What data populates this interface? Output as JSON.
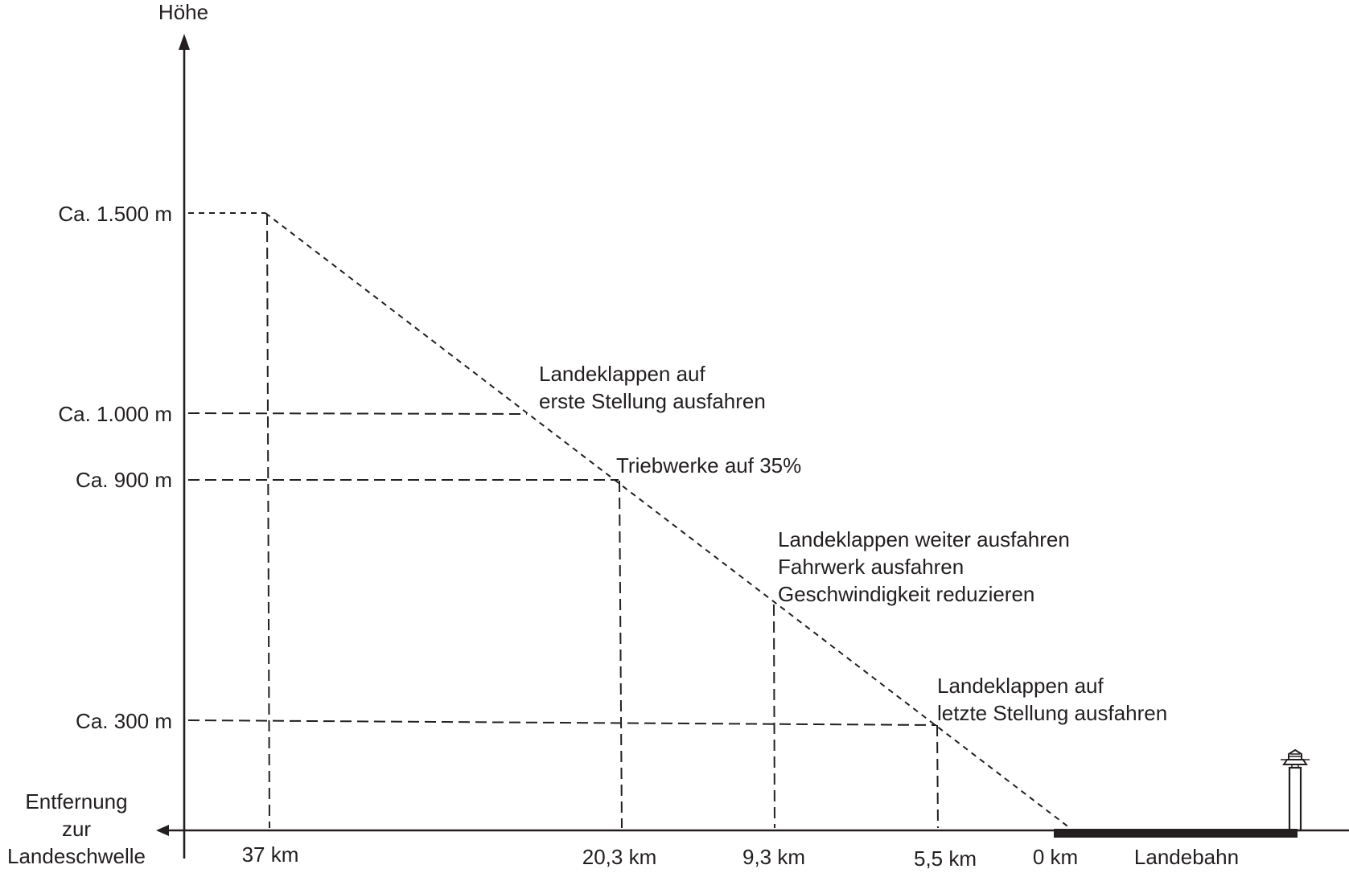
{
  "diagram": {
    "y_axis_title": "Höhe",
    "x_axis_title": [
      "Entfernung",
      "zur",
      "Landeschwelle"
    ],
    "height_labels": [
      "Ca. 1.500 m",
      "Ca. 1.000 m",
      "Ca. 900 m",
      "Ca. 300 m"
    ],
    "distance_labels": [
      "37 km",
      "20,3 km",
      "9,3 km",
      "5,5 km",
      "0 km"
    ],
    "runway_label": "Landebahn",
    "annotations": [
      {
        "lines": [
          "Landeklappen auf",
          "erste Stellung ausfahren"
        ]
      },
      {
        "lines": [
          "Triebwerke auf 35%"
        ]
      },
      {
        "lines": [
          "Landeklappen weiter ausfahren",
          "Fahrwerk ausfahren",
          "Geschwindigkeit reduzieren"
        ]
      },
      {
        "lines": [
          "Landeklappen auf",
          "letzte Stellung ausfahren"
        ]
      }
    ],
    "icons": [
      "control-tower-icon"
    ]
  }
}
